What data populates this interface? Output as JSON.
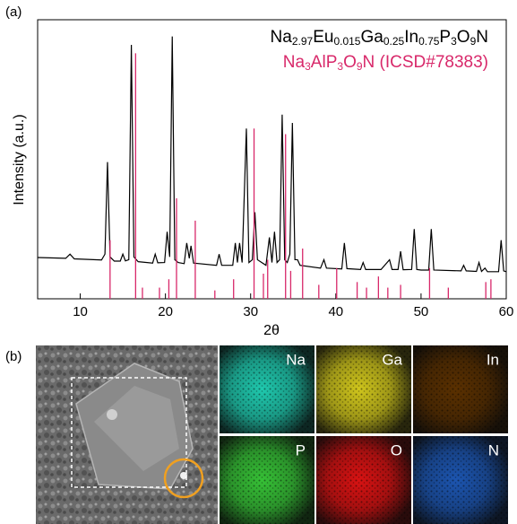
{
  "chart_data": {
    "type": "line",
    "panel_label": "(a)",
    "x_label": "2θ",
    "y_label": "Intensity (a.u.)",
    "xlim": [
      5,
      60
    ],
    "xticks": [
      10,
      20,
      30,
      40,
      50,
      60
    ],
    "ylim": [
      0,
      100
    ],
    "series": [
      {
        "name": "Na2.97Eu0.015Ga0.25In0.75P3O9N",
        "color": "#000000",
        "type": "line",
        "x": [
          5,
          8.3,
          8.8,
          9.3,
          12.5,
          12.9,
          13.2,
          13.5,
          14.0,
          14.7,
          15.0,
          15.3,
          15.7,
          16.0,
          16.3,
          16.8,
          18.5,
          18.8,
          19.1,
          19.9,
          20.2,
          20.5,
          20.8,
          21.1,
          21.5,
          22.2,
          22.5,
          22.8,
          23.0,
          23.3,
          26.0,
          26.3,
          26.6,
          27.9,
          28.2,
          28.45,
          28.7,
          29.0,
          29.5,
          29.8,
          30.2,
          30.5,
          30.8,
          31.8,
          32.2,
          32.5,
          32.8,
          33.1,
          33.4,
          33.7,
          34.0,
          34.3,
          34.6,
          34.9,
          35.2,
          35.5,
          35.8,
          38.2,
          38.6,
          38.9,
          40.7,
          41.0,
          41.3,
          42.9,
          43.2,
          43.5,
          45.3,
          46.3,
          46.6,
          47.3,
          47.6,
          47.9,
          48.9,
          49.2,
          49.5,
          50.0,
          50.9,
          51.2,
          51.5,
          54.7,
          55.0,
          55.3,
          56.5,
          56.8,
          57.1,
          57.5,
          57.8,
          59.1,
          59.4,
          59.7,
          60
        ],
        "values": [
          14.8,
          14.5,
          16,
          14.3,
          13.9,
          16,
          49,
          15,
          13.5,
          13.5,
          16,
          13.6,
          14,
          91,
          15,
          13.3,
          12.8,
          16,
          12.9,
          13,
          24,
          15,
          94,
          14,
          13,
          12.6,
          20,
          14.5,
          19,
          12.8,
          12,
          16,
          12,
          12,
          20,
          13,
          20,
          13,
          61,
          13,
          14,
          31,
          14,
          12,
          22,
          13,
          24,
          13,
          14,
          66,
          14,
          13,
          16,
          63,
          14,
          14,
          12,
          11,
          14,
          11,
          10.7,
          20,
          10.8,
          10.5,
          13,
          10.5,
          10.5,
          14,
          10.5,
          10.5,
          17,
          10.4,
          10.5,
          25,
          10.5,
          10.3,
          10.3,
          25,
          10.3,
          10,
          12,
          10,
          9.8,
          13,
          9.8,
          11,
          9.7,
          9.7,
          21,
          10,
          9.7
        ]
      },
      {
        "name": "Na3AlP3O9N (ICSD#78383)",
        "color": "#d8286a",
        "type": "stick",
        "x": [
          13.5,
          16.5,
          17.3,
          19.3,
          20.4,
          21.3,
          23.5,
          25.8,
          28.0,
          30.4,
          31.5,
          32.0,
          34.1,
          34.7,
          36.1,
          38.0,
          40.1,
          42.5,
          43.6,
          45.0,
          46.1,
          47.6,
          51.0,
          53.2,
          57.6,
          58.2
        ],
        "values": [
          21,
          88,
          4,
          4,
          7,
          36,
          28,
          3,
          7,
          61,
          9,
          14,
          59,
          10,
          18,
          5,
          11,
          6,
          4,
          8,
          4,
          5,
          11,
          4,
          6,
          7
        ]
      }
    ]
  },
  "panel_b": {
    "label": "(b)",
    "maps": [
      {
        "element": "Na",
        "color": "#1fc9ae"
      },
      {
        "element": "Ga",
        "color": "#cfc51c"
      },
      {
        "element": "In",
        "color": "#5a3000"
      },
      {
        "element": "P",
        "color": "#36c136"
      },
      {
        "element": "O",
        "color": "#d81212"
      },
      {
        "element": "N",
        "color": "#1c55b0"
      }
    ]
  }
}
